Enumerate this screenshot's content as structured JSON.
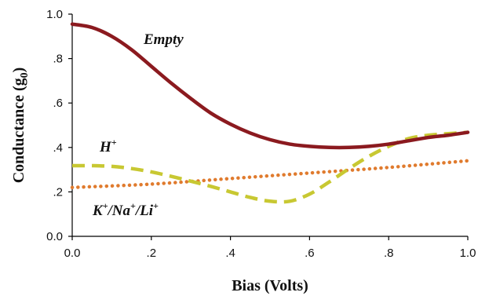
{
  "chart_data": {
    "type": "line",
    "xlabel": "Bias (Volts)",
    "ylabel": "Conductance (g0)",
    "ylabel_parts": {
      "main": "Conductance (g",
      "sub": "0",
      "close": ")"
    },
    "xlim": [
      0.0,
      1.0
    ],
    "ylim": [
      0.0,
      1.0
    ],
    "xticks": [
      0.0,
      0.2,
      0.4,
      0.6,
      0.8,
      1.0
    ],
    "xtick_labels": [
      "0.0",
      ".2",
      ".4",
      ".6",
      ".8",
      "1.0"
    ],
    "yticks": [
      0.0,
      0.2,
      0.4,
      0.6,
      0.8,
      1.0
    ],
    "ytick_labels": [
      "0.0",
      ".2",
      ".4",
      ".6",
      ".8",
      "1.0"
    ],
    "grid": false,
    "legend": "inline labels",
    "series": [
      {
        "name": "Empty",
        "label_parts": [
          {
            "t": "Empty"
          }
        ],
        "color": "#8b1a1f",
        "style": "solid",
        "x": [
          0.0,
          0.05,
          0.1,
          0.15,
          0.2,
          0.25,
          0.3,
          0.35,
          0.4,
          0.45,
          0.5,
          0.55,
          0.6,
          0.65,
          0.7,
          0.75,
          0.8,
          0.85,
          0.9,
          0.95,
          1.0
        ],
        "y": [
          0.955,
          0.94,
          0.9,
          0.84,
          0.765,
          0.69,
          0.62,
          0.555,
          0.505,
          0.465,
          0.435,
          0.415,
          0.405,
          0.4,
          0.4,
          0.405,
          0.415,
          0.43,
          0.445,
          0.455,
          0.468
        ]
      },
      {
        "name": "H+",
        "label_parts": [
          {
            "t": "H"
          },
          {
            "t": "+",
            "sup": true
          }
        ],
        "color": "#c8c832",
        "style": "dashed",
        "x": [
          0.0,
          0.05,
          0.1,
          0.15,
          0.2,
          0.25,
          0.3,
          0.35,
          0.4,
          0.45,
          0.5,
          0.55,
          0.6,
          0.65,
          0.7,
          0.75,
          0.8,
          0.85,
          0.9,
          0.95,
          1.0
        ],
        "y": [
          0.318,
          0.318,
          0.315,
          0.305,
          0.29,
          0.27,
          0.248,
          0.225,
          0.2,
          0.175,
          0.158,
          0.158,
          0.19,
          0.245,
          0.305,
          0.36,
          0.405,
          0.44,
          0.455,
          0.462,
          0.468
        ]
      },
      {
        "name": "K+/Na+/Li+",
        "label_parts": [
          {
            "t": "K"
          },
          {
            "t": "+",
            "sup": true
          },
          {
            "t": "/Na"
          },
          {
            "t": "+",
            "sup": true
          },
          {
            "t": "/Li"
          },
          {
            "t": "+",
            "sup": true
          }
        ],
        "color": "#e07b2e",
        "style": "dotted",
        "x": [
          0.0,
          0.2,
          0.4,
          0.6,
          0.8,
          1.0
        ],
        "y": [
          0.22,
          0.235,
          0.26,
          0.285,
          0.31,
          0.34
        ]
      }
    ]
  }
}
